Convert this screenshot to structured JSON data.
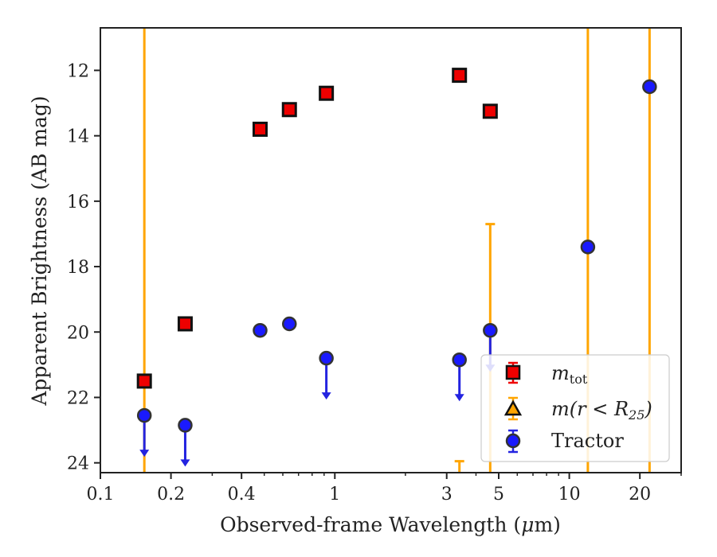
{
  "colors": {
    "mtot_face": "#ee0000",
    "mtot_edge": "#111111",
    "aperture": "#ffa500",
    "tractor_face": "#1a1aff",
    "tractor_edge": "#333333",
    "tractor_error": "#2323e0"
  },
  "chart_data": {
    "type": "scatter",
    "xlabel_prefix": "Observed-frame Wavelength (",
    "xlabel_mu": "μ",
    "xlabel_suffix": "m)",
    "ylabel": "Apparent Brightness (AB mag)",
    "x_scale": "log",
    "xlim": [
      0.1,
      30
    ],
    "ylim": [
      24.3,
      10.7
    ],
    "y_inverted": true,
    "x_ticks": [
      {
        "value": 0.1,
        "label": "0.1"
      },
      {
        "value": 0.2,
        "label": "0.2"
      },
      {
        "value": 0.4,
        "label": "0.4"
      },
      {
        "value": 1,
        "label": "1"
      },
      {
        "value": 3,
        "label": "3"
      },
      {
        "value": 5,
        "label": "5"
      },
      {
        "value": 10,
        "label": "10"
      },
      {
        "value": 20,
        "label": "20"
      }
    ],
    "y_ticks": [
      {
        "value": 12,
        "label": "12"
      },
      {
        "value": 14,
        "label": "14"
      },
      {
        "value": 16,
        "label": "16"
      },
      {
        "value": 18,
        "label": "18"
      },
      {
        "value": 20,
        "label": "20"
      },
      {
        "value": 22,
        "label": "22"
      },
      {
        "value": 24,
        "label": "24"
      }
    ],
    "grid": false,
    "legend_position": "lower-right",
    "legend": [
      {
        "key": "mtot",
        "label_main": "m",
        "label_sub": "tot"
      },
      {
        "key": "aperture",
        "label_pre": "m(r < R",
        "label_sub": "25",
        "label_post": ")"
      },
      {
        "key": "tractor",
        "label_main": "Tractor"
      }
    ],
    "series": [
      {
        "key": "mtot",
        "marker": "square",
        "points": [
          {
            "x": 0.154,
            "y": 21.5
          },
          {
            "x": 0.23,
            "y": 19.75
          },
          {
            "x": 0.48,
            "y": 13.8
          },
          {
            "x": 0.64,
            "y": 13.2
          },
          {
            "x": 0.92,
            "y": 12.7
          },
          {
            "x": 3.4,
            "y": 12.15
          },
          {
            "x": 4.6,
            "y": 13.25
          }
        ]
      },
      {
        "key": "aperture",
        "marker": "vline",
        "lines": [
          0.154,
          12.0,
          22.0
        ],
        "errorbars": [
          {
            "x": 4.6,
            "y_low": 16.7,
            "y_high": 24.3
          },
          {
            "x": 3.4,
            "y_low": 23.95,
            "y_high": 24.3
          }
        ]
      },
      {
        "key": "tractor",
        "marker": "circle",
        "points": [
          {
            "x": 0.154,
            "y": 22.55,
            "upper_limit": true
          },
          {
            "x": 0.23,
            "y": 22.85,
            "upper_limit": true
          },
          {
            "x": 0.48,
            "y": 19.95,
            "upper_limit": false
          },
          {
            "x": 0.64,
            "y": 19.75,
            "upper_limit": false
          },
          {
            "x": 0.92,
            "y": 20.8,
            "upper_limit": true
          },
          {
            "x": 3.4,
            "y": 20.85,
            "upper_limit": true
          },
          {
            "x": 4.6,
            "y": 19.95,
            "upper_limit": true
          },
          {
            "x": 12.0,
            "y": 17.4,
            "upper_limit": false
          },
          {
            "x": 22.0,
            "y": 12.5,
            "upper_limit": false
          }
        ]
      }
    ]
  }
}
